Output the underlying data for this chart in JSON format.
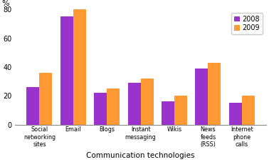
{
  "categories": [
    "Social\nnetworking\nsites",
    "Email",
    "Blogs",
    "Instant\nmessaging",
    "Wikis",
    "News\nfeeds\n(RSS)",
    "Internet\nphone\ncalls"
  ],
  "values_2008": [
    26,
    75,
    22,
    29,
    16,
    39,
    15
  ],
  "values_2009": [
    36,
    80,
    25,
    32,
    20,
    43,
    20
  ],
  "color_2008": "#9933cc",
  "color_2009": "#ff9933",
  "ylabel": "%",
  "xlabel": "Communication technologies",
  "legend_labels": [
    "2008",
    "2009"
  ],
  "ylim": [
    0,
    80
  ],
  "yticks": [
    0,
    20,
    40,
    60,
    80
  ],
  "bar_width": 0.38,
  "grid_color": "#ffffff",
  "bg_color": "#ffffff"
}
